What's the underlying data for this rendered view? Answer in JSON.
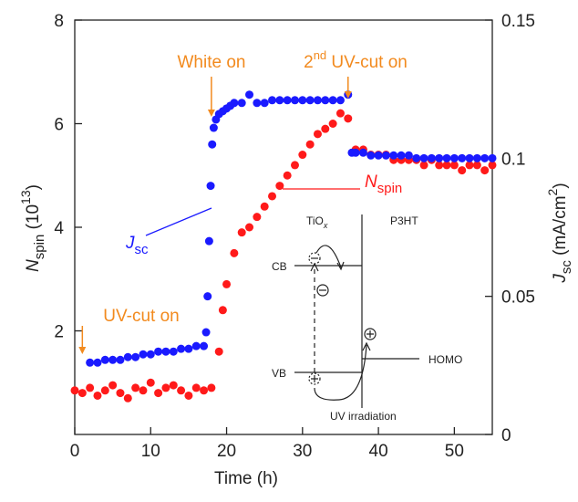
{
  "chart_data": {
    "type": "scatter",
    "x_label": "Time (h)",
    "y_label": {
      "main": "N",
      "sub": "spin",
      "rest": " (10",
      "sup": "13",
      "end": ")"
    },
    "y2_label": {
      "main": "J",
      "sub": "sc",
      "rest": " (mA/cm",
      "sup": "2",
      "end": ")"
    },
    "xlim": [
      0,
      55
    ],
    "xticks": [
      0,
      10,
      20,
      30,
      40,
      50
    ],
    "ylim": [
      0,
      8
    ],
    "yticks": [
      2,
      4,
      6,
      8
    ],
    "y2lim": [
      0,
      0.15
    ],
    "y2ticks": [
      0,
      0.05,
      0.1,
      0.15
    ],
    "series": [
      {
        "name": "N",
        "name_sub": "spin",
        "color": "#ff1a1a",
        "x": [
          0,
          1,
          2,
          3,
          4,
          5,
          6,
          7,
          8,
          9,
          10,
          11,
          12,
          13,
          14,
          15,
          16,
          17,
          18,
          19,
          19.5,
          20,
          21,
          22,
          23,
          24,
          25,
          26,
          27,
          28,
          29,
          30,
          31,
          32,
          33,
          34,
          35,
          36,
          37,
          38,
          39,
          40,
          41,
          42,
          43,
          44,
          45,
          46,
          47,
          48,
          49,
          50,
          51,
          52,
          53,
          54,
          55
        ],
        "values": [
          0.85,
          0.8,
          0.9,
          0.75,
          0.85,
          0.95,
          0.8,
          0.7,
          0.9,
          0.85,
          1.0,
          0.8,
          0.9,
          0.95,
          0.85,
          0.75,
          0.9,
          0.85,
          0.9,
          1.6,
          2.4,
          2.9,
          3.5,
          3.9,
          4.0,
          4.2,
          4.4,
          4.6,
          4.8,
          5.0,
          5.2,
          5.4,
          5.6,
          5.8,
          5.9,
          6.0,
          6.2,
          6.1,
          5.5,
          5.5,
          5.4,
          5.4,
          5.4,
          5.3,
          5.3,
          5.3,
          5.3,
          5.2,
          5.3,
          5.2,
          5.2,
          5.2,
          5.1,
          5.2,
          5.2,
          5.1,
          5.2
        ]
      },
      {
        "name": "J",
        "name_sub": "sc",
        "color": "#1a1aff",
        "axis": "y2",
        "x": [
          2,
          3,
          4,
          5,
          6,
          7,
          8,
          9,
          10,
          11,
          12,
          13,
          14,
          15,
          16,
          17,
          17.3,
          17.5,
          17.7,
          17.9,
          18.1,
          18.3,
          18.6,
          19,
          19.5,
          20,
          20.5,
          21,
          22,
          23,
          24,
          25,
          26,
          27,
          28,
          29,
          30,
          31,
          32,
          33,
          34,
          35,
          36,
          36.5,
          37,
          38,
          39,
          40,
          41,
          42,
          43,
          44,
          45,
          46,
          47,
          48,
          49,
          50,
          51,
          52,
          53,
          54,
          55
        ],
        "values": [
          0.026,
          0.026,
          0.027,
          0.027,
          0.027,
          0.028,
          0.028,
          0.029,
          0.029,
          0.03,
          0.03,
          0.03,
          0.031,
          0.031,
          0.032,
          0.032,
          0.037,
          0.05,
          0.07,
          0.09,
          0.105,
          0.111,
          0.114,
          0.116,
          0.117,
          0.118,
          0.119,
          0.12,
          0.12,
          0.123,
          0.12,
          0.12,
          0.121,
          0.121,
          0.121,
          0.121,
          0.121,
          0.121,
          0.121,
          0.121,
          0.121,
          0.121,
          0.123,
          0.102,
          0.102,
          0.102,
          0.101,
          0.101,
          0.101,
          0.101,
          0.101,
          0.101,
          0.1,
          0.1,
          0.1,
          0.1,
          0.1,
          0.1,
          0.1,
          0.1,
          0.1,
          0.1,
          0.1
        ]
      }
    ],
    "annotations": [
      {
        "text": "UV-cut on",
        "x": 1
      },
      {
        "text": "White on",
        "x": 18
      },
      {
        "pre": "2",
        "sup": "nd",
        "text": " UV-cut on",
        "x": 36
      }
    ],
    "inset": {
      "left": "TiO",
      "left_sub": "x",
      "right": "P3HT",
      "cb": "CB",
      "vb": "VB",
      "homo": "HOMO",
      "caption": "UV irradiation"
    }
  }
}
